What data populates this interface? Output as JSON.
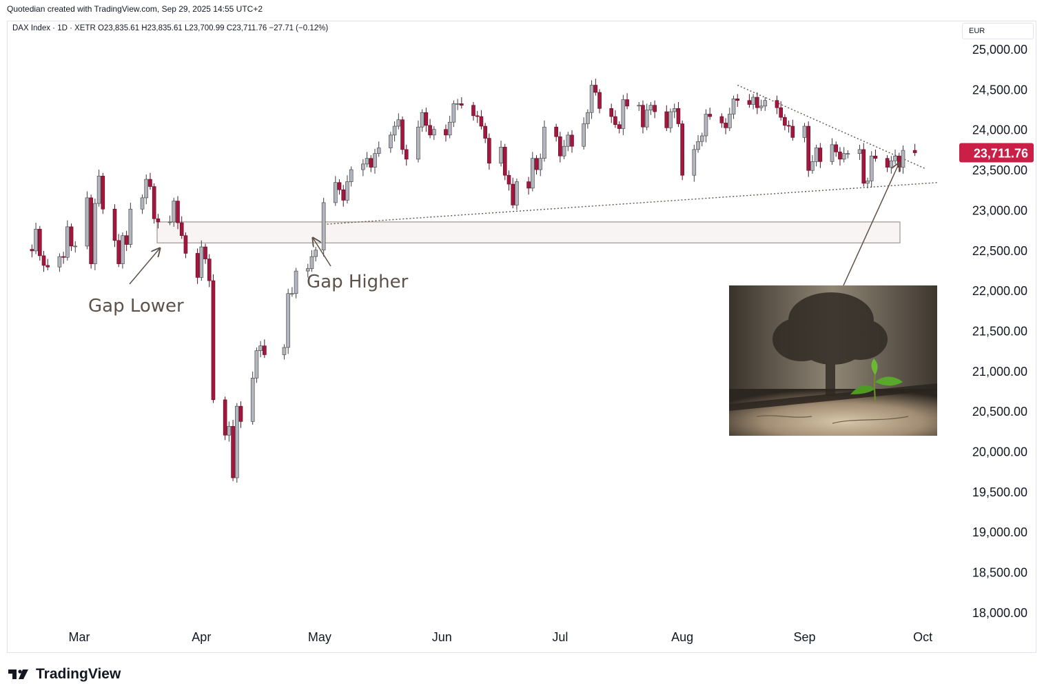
{
  "credit": "Quotedian created with TradingView.com, Sep 29, 2025 14:55 UTC+2",
  "legend": "DAX Index · 1D · XETR  O23,835.61  H23,835.61  L23,700.99  C23,711.76  −27.71 (−0.12%)",
  "currency": "EUR",
  "brand": "TradingView",
  "colors": {
    "up": "#b2b5be",
    "down": "#a3163d",
    "last_price": "#cc1f48",
    "gap_zone": "#f8f4f3",
    "annotation": "#5d5148"
  },
  "annotations": {
    "gap_lower": "Gap Lower",
    "gap_higher": "Gap Higher"
  },
  "inset_image": {
    "icon": "seedling-and-tree-shadow-photo"
  },
  "chart_data": {
    "type": "candlestick",
    "title": "DAX Index · 1D · XETR",
    "last_price_label": "23,711.76",
    "ylim": [
      17900,
      25200
    ],
    "y_ticks": [
      "25,000.00",
      "24,500.00",
      "24,000.00",
      "23,500.00",
      "23,000.00",
      "22,500.00",
      "22,000.00",
      "21,500.00",
      "21,000.00",
      "20,500.00",
      "20,000.00",
      "19,500.00",
      "19,000.00",
      "18,500.00",
      "18,000.00"
    ],
    "x_ticks": [
      "Mar",
      "Apr",
      "May",
      "Jun",
      "Jul",
      "Aug",
      "Sep",
      "Oct"
    ],
    "x_tick_dates": [
      "2025-03-01",
      "2025-04-01",
      "2025-05-01",
      "2025-06-01",
      "2025-07-01",
      "2025-08-01",
      "2025-09-01",
      "2025-10-01"
    ],
    "gap_zone": [
      22590,
      22850
    ],
    "support_trendline": [
      [
        "2025-05-02",
        22820
      ],
      [
        "2025-09-30",
        23340
      ]
    ],
    "resistance_trendline": [
      [
        "2025-08-15",
        24550
      ],
      [
        "2025-09-30",
        23510
      ]
    ],
    "closes": [
      [
        "2025-02-14",
        22510
      ],
      [
        "2025-02-17",
        22490
      ],
      [
        "2025-02-18",
        22760
      ],
      [
        "2025-02-19",
        22430
      ],
      [
        "2025-02-20",
        22310
      ],
      [
        "2025-02-21",
        22290
      ],
      [
        "2025-02-24",
        22420
      ],
      [
        "2025-02-25",
        22410
      ],
      [
        "2025-02-26",
        22790
      ],
      [
        "2025-02-27",
        22550
      ],
      [
        "2025-02-28",
        22550
      ],
      [
        "2025-03-03",
        23150
      ],
      [
        "2025-03-04",
        22330
      ],
      [
        "2025-03-05",
        23080
      ],
      [
        "2025-03-06",
        23420
      ],
      [
        "2025-03-07",
        23010
      ],
      [
        "2025-03-10",
        22620
      ],
      [
        "2025-03-11",
        22330
      ],
      [
        "2025-03-12",
        22680
      ],
      [
        "2025-03-13",
        22570
      ],
      [
        "2025-03-14",
        23010
      ],
      [
        "2025-03-17",
        23150
      ],
      [
        "2025-03-18",
        23380
      ],
      [
        "2025-03-19",
        23290
      ],
      [
        "2025-03-20",
        22890
      ],
      [
        "2025-03-21",
        22850
      ],
      [
        "2025-03-24",
        22850
      ],
      [
        "2025-03-25",
        23110
      ],
      [
        "2025-03-26",
        22840
      ],
      [
        "2025-03-27",
        22680
      ],
      [
        "2025-03-28",
        22460
      ],
      [
        "2025-03-31",
        22160
      ],
      [
        "2025-04-01",
        22540
      ],
      [
        "2025-04-02",
        22390
      ],
      [
        "2025-04-03",
        22120
      ],
      [
        "2025-04-04",
        20640
      ],
      [
        "2025-04-07",
        20200
      ],
      [
        "2025-04-08",
        20310
      ],
      [
        "2025-04-09",
        19670
      ],
      [
        "2025-04-10",
        20560
      ],
      [
        "2025-04-11",
        20370
      ],
      [
        "2025-04-14",
        20910
      ],
      [
        "2025-04-15",
        21250
      ],
      [
        "2025-04-16",
        21310
      ],
      [
        "2025-04-17",
        21200
      ],
      [
        "2025-04-22",
        21290
      ],
      [
        "2025-04-23",
        21960
      ],
      [
        "2025-04-24",
        21960
      ],
      [
        "2025-04-25",
        22240
      ],
      [
        "2025-04-28",
        22270
      ],
      [
        "2025-04-29",
        22420
      ],
      [
        "2025-04-30",
        22500
      ],
      [
        "2025-05-02",
        23090
      ],
      [
        "2025-05-05",
        23340
      ],
      [
        "2025-05-06",
        23250
      ],
      [
        "2025-05-07",
        23120
      ],
      [
        "2025-05-08",
        23350
      ],
      [
        "2025-05-09",
        23500
      ],
      [
        "2025-05-12",
        23570
      ],
      [
        "2025-05-13",
        23640
      ],
      [
        "2025-05-14",
        23530
      ],
      [
        "2025-05-15",
        23700
      ],
      [
        "2025-05-16",
        23770
      ],
      [
        "2025-05-19",
        23930
      ],
      [
        "2025-05-20",
        24040
      ],
      [
        "2025-05-21",
        24120
      ],
      [
        "2025-05-22",
        23750
      ],
      [
        "2025-05-23",
        23630
      ],
      [
        "2025-05-26",
        24030
      ],
      [
        "2025-05-27",
        24210
      ],
      [
        "2025-05-28",
        24050
      ],
      [
        "2025-05-29",
        23930
      ],
      [
        "2025-05-30",
        24000
      ],
      [
        "2025-06-02",
        23930
      ],
      [
        "2025-06-03",
        24090
      ],
      [
        "2025-06-04",
        24320
      ],
      [
        "2025-06-05",
        24320
      ],
      [
        "2025-06-06",
        24300
      ],
      [
        "2025-06-09",
        24170
      ],
      [
        "2025-06-10",
        24160
      ],
      [
        "2025-06-11",
        24040
      ],
      [
        "2025-06-12",
        23890
      ],
      [
        "2025-06-13",
        23580
      ],
      [
        "2025-06-16",
        23780
      ],
      [
        "2025-06-17",
        23430
      ],
      [
        "2025-06-18",
        23320
      ],
      [
        "2025-06-19",
        23060
      ],
      [
        "2025-06-20",
        23350
      ],
      [
        "2025-06-23",
        23270
      ],
      [
        "2025-06-24",
        23640
      ],
      [
        "2025-06-25",
        23500
      ],
      [
        "2025-06-26",
        23640
      ],
      [
        "2025-06-27",
        24030
      ],
      [
        "2025-06-30",
        23910
      ],
      [
        "2025-07-01",
        23670
      ],
      [
        "2025-07-02",
        23790
      ],
      [
        "2025-07-03",
        23930
      ],
      [
        "2025-07-04",
        23790
      ],
      [
        "2025-07-07",
        24070
      ],
      [
        "2025-07-08",
        24210
      ],
      [
        "2025-07-09",
        24550
      ],
      [
        "2025-07-10",
        24460
      ],
      [
        "2025-07-11",
        24260
      ],
      [
        "2025-07-14",
        24160
      ],
      [
        "2025-07-15",
        24060
      ],
      [
        "2025-07-16",
        24010
      ],
      [
        "2025-07-17",
        24370
      ],
      [
        "2025-07-18",
        24290
      ],
      [
        "2025-07-21",
        24300
      ],
      [
        "2025-07-22",
        24030
      ],
      [
        "2025-07-23",
        24240
      ],
      [
        "2025-07-24",
        24300
      ],
      [
        "2025-07-25",
        24220
      ],
      [
        "2025-07-28",
        24020
      ],
      [
        "2025-07-29",
        24220
      ],
      [
        "2025-07-30",
        24260
      ],
      [
        "2025-07-31",
        24070
      ],
      [
        "2025-08-01",
        23430
      ],
      [
        "2025-08-04",
        23750
      ],
      [
        "2025-08-05",
        23850
      ],
      [
        "2025-08-06",
        23920
      ],
      [
        "2025-08-07",
        24190
      ],
      [
        "2025-08-08",
        24160
      ],
      [
        "2025-08-11",
        24080
      ],
      [
        "2025-08-12",
        24020
      ],
      [
        "2025-08-13",
        24190
      ],
      [
        "2025-08-14",
        24380
      ],
      [
        "2025-08-15",
        24360
      ],
      [
        "2025-08-18",
        24310
      ],
      [
        "2025-08-19",
        24400
      ],
      [
        "2025-08-20",
        24270
      ],
      [
        "2025-08-21",
        24290
      ],
      [
        "2025-08-22",
        24360
      ],
      [
        "2025-08-25",
        24270
      ],
      [
        "2025-08-26",
        24150
      ],
      [
        "2025-08-27",
        24050
      ],
      [
        "2025-08-28",
        24040
      ],
      [
        "2025-08-29",
        23900
      ],
      [
        "2025-09-01",
        24040
      ],
      [
        "2025-09-02",
        23490
      ],
      [
        "2025-09-03",
        23600
      ],
      [
        "2025-09-04",
        23770
      ],
      [
        "2025-09-05",
        23600
      ],
      [
        "2025-09-08",
        23810
      ],
      [
        "2025-09-09",
        23720
      ],
      [
        "2025-09-10",
        23630
      ],
      [
        "2025-09-11",
        23700
      ],
      [
        "2025-09-12",
        23700
      ],
      [
        "2025-09-15",
        23750
      ],
      [
        "2025-09-16",
        23330
      ],
      [
        "2025-09-17",
        23360
      ],
      [
        "2025-09-18",
        23670
      ],
      [
        "2025-09-19",
        23640
      ],
      [
        "2025-09-22",
        23530
      ],
      [
        "2025-09-23",
        23610
      ],
      [
        "2025-09-24",
        23670
      ],
      [
        "2025-09-25",
        23530
      ],
      [
        "2025-09-26",
        23740
      ],
      [
        "2025-09-29",
        23710
      ]
    ]
  }
}
